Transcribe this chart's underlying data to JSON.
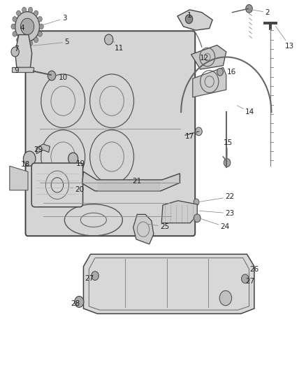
{
  "bg_color": "#ffffff",
  "line_color": "#333333",
  "label_color": "#222222",
  "label_fontsize": 7.5
}
